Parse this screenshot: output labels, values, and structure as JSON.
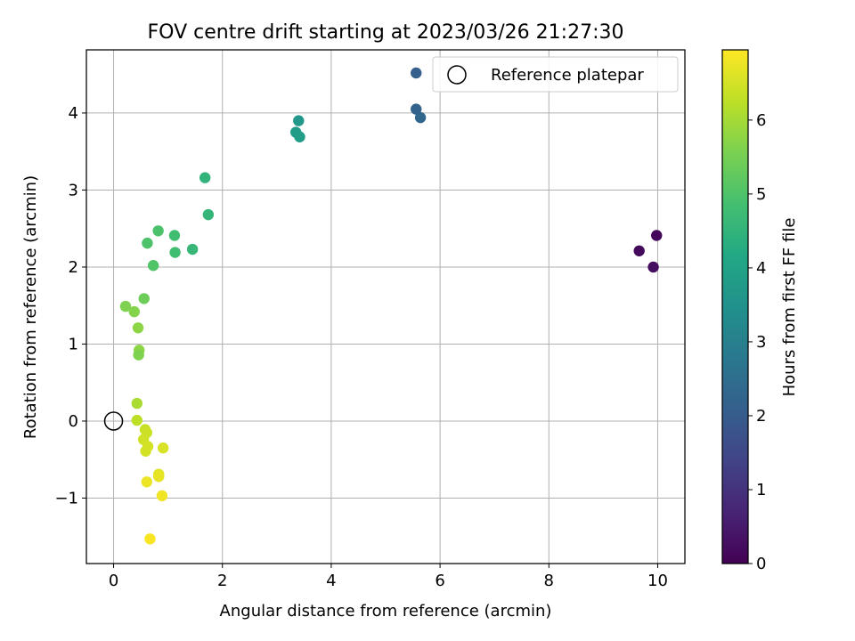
{
  "chart_data": {
    "type": "scatter",
    "title": "FOV centre drift starting at 2023/03/26 21:27:30",
    "xlabel": "Angular distance from reference (arcmin)",
    "ylabel": "Rotation from reference (arcmin)",
    "xlim": [
      -0.5,
      10.5
    ],
    "ylim": [
      -1.85,
      4.82
    ],
    "grid": true,
    "xticks": [
      0,
      2,
      4,
      6,
      8,
      10
    ],
    "yticks": [
      -1,
      0,
      1,
      2,
      3,
      4
    ],
    "xtick_labels": [
      "0",
      "2",
      "4",
      "6",
      "8",
      "10"
    ],
    "ytick_labels": [
      "−1",
      "0",
      "1",
      "2",
      "3",
      "4"
    ],
    "legend": {
      "label": "Reference platepar",
      "placement": "top-right"
    },
    "reference_point": {
      "x": 0,
      "y": 0
    },
    "colorbar": {
      "label": "Hours from first FF file",
      "range": [
        0,
        6.95
      ],
      "ticks": [
        0,
        1,
        2,
        3,
        4,
        5,
        6
      ],
      "tick_labels": [
        "0",
        "1",
        "2",
        "3",
        "4",
        "5",
        "6"
      ],
      "colormap": "viridis"
    },
    "points": [
      {
        "x": 9.98,
        "y": 2.41,
        "c": 0.1
      },
      {
        "x": 9.66,
        "y": 2.21,
        "c": 0.15
      },
      {
        "x": 9.92,
        "y": 2.0,
        "c": 0.25
      },
      {
        "x": 5.56,
        "y": 4.52,
        "c": 2.1
      },
      {
        "x": 5.56,
        "y": 4.05,
        "c": 2.2
      },
      {
        "x": 5.64,
        "y": 3.94,
        "c": 2.3
      },
      {
        "x": 3.4,
        "y": 3.9,
        "c": 3.7
      },
      {
        "x": 3.35,
        "y": 3.75,
        "c": 3.8
      },
      {
        "x": 3.42,
        "y": 3.69,
        "c": 3.85
      },
      {
        "x": 1.68,
        "y": 3.16,
        "c": 4.5
      },
      {
        "x": 1.74,
        "y": 2.68,
        "c": 4.55
      },
      {
        "x": 1.45,
        "y": 2.23,
        "c": 4.6
      },
      {
        "x": 1.12,
        "y": 2.41,
        "c": 4.8
      },
      {
        "x": 1.13,
        "y": 2.19,
        "c": 4.8
      },
      {
        "x": 0.82,
        "y": 2.47,
        "c": 4.95
      },
      {
        "x": 0.62,
        "y": 2.31,
        "c": 5.0
      },
      {
        "x": 0.73,
        "y": 2.02,
        "c": 5.05
      },
      {
        "x": 0.56,
        "y": 1.59,
        "c": 5.4
      },
      {
        "x": 0.22,
        "y": 1.49,
        "c": 5.6
      },
      {
        "x": 0.38,
        "y": 1.42,
        "c": 5.65
      },
      {
        "x": 0.45,
        "y": 1.21,
        "c": 5.75
      },
      {
        "x": 0.47,
        "y": 0.92,
        "c": 5.75
      },
      {
        "x": 0.46,
        "y": 0.86,
        "c": 5.6
      },
      {
        "x": 0.43,
        "y": 0.23,
        "c": 6.05
      },
      {
        "x": 0.43,
        "y": 0.01,
        "c": 6.25
      },
      {
        "x": 0.58,
        "y": -0.11,
        "c": 6.35
      },
      {
        "x": 0.61,
        "y": -0.15,
        "c": 6.4
      },
      {
        "x": 0.55,
        "y": -0.24,
        "c": 6.45
      },
      {
        "x": 0.63,
        "y": -0.33,
        "c": 6.5
      },
      {
        "x": 0.59,
        "y": -0.39,
        "c": 6.5
      },
      {
        "x": 0.91,
        "y": -0.35,
        "c": 6.55
      },
      {
        "x": 0.83,
        "y": -0.69,
        "c": 6.65
      },
      {
        "x": 0.83,
        "y": -0.72,
        "c": 6.7
      },
      {
        "x": 0.61,
        "y": -0.79,
        "c": 6.75
      },
      {
        "x": 0.89,
        "y": -0.97,
        "c": 6.8
      },
      {
        "x": 0.67,
        "y": -1.53,
        "c": 6.9
      }
    ]
  }
}
